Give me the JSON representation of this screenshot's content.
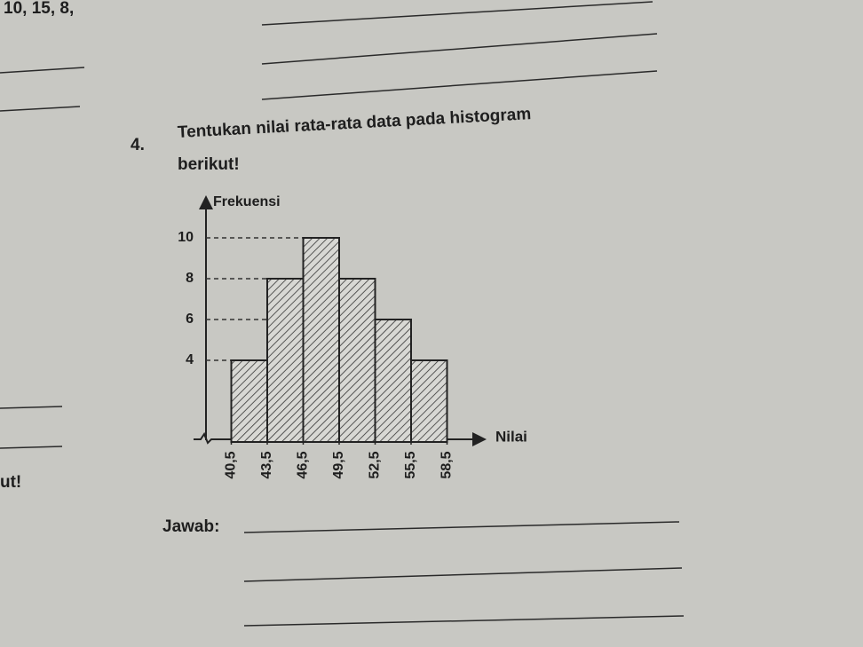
{
  "top_text": "10, 15, 8,",
  "question": {
    "number": "4.",
    "text_line1": "Tentukan nilai rata-rata data pada histogram",
    "text_line2": "berikut!"
  },
  "chart_data": {
    "type": "histogram",
    "x_label": "Nilai",
    "y_label": "Frekuensi",
    "bins": [
      40.5,
      43.5,
      46.5,
      49.5,
      52.5,
      55.5,
      58.5
    ],
    "values": [
      4,
      8,
      10,
      8,
      6,
      4
    ],
    "color": "#cfcfcf",
    "xlim": [
      37.5,
      61.5
    ],
    "ylim": [
      0,
      12
    ],
    "xticks": [
      {
        "value": 40.5,
        "label": "40,5"
      },
      {
        "value": 43.5,
        "label": "43,5"
      },
      {
        "value": 46.5,
        "label": "46,5"
      },
      {
        "value": 49.5,
        "label": "49,5"
      },
      {
        "value": 52.5,
        "label": "52,5"
      },
      {
        "value": 55.5,
        "label": "55,5"
      },
      {
        "value": 58.5,
        "label": "58,5"
      }
    ],
    "yticks": [
      4,
      6,
      8,
      10
    ],
    "grid": true
  },
  "left_fragment": "ut!",
  "answer_label": "Jawab:"
}
